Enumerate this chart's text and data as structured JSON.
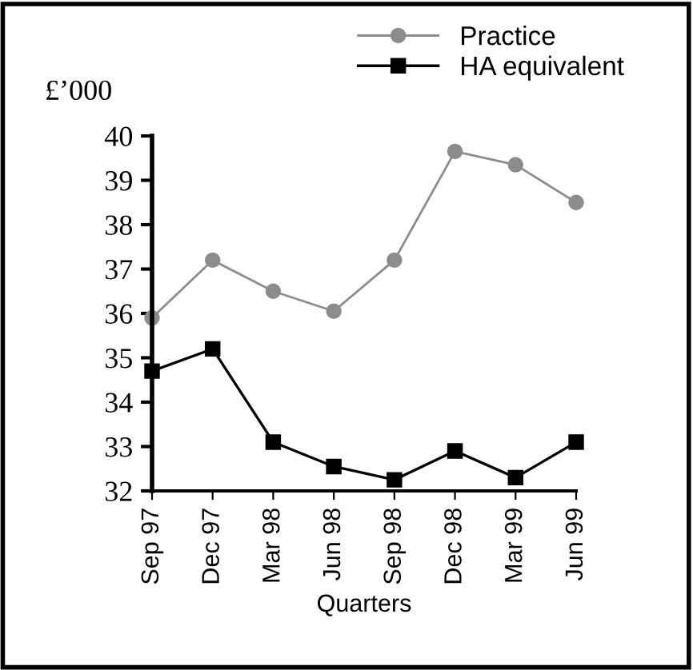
{
  "chart_data": {
    "type": "line",
    "ylabel": "£’000",
    "xlabel": "Quarters",
    "categories": [
      "Sep 97",
      "Dec 97",
      "Mar 98",
      "Jun 98",
      "Sep 98",
      "Dec 98",
      "Mar 99",
      "Jun 99"
    ],
    "series": [
      {
        "name": "Practice",
        "color": "#8c8c8c",
        "marker": "circle",
        "values": [
          35.9,
          37.2,
          36.5,
          36.05,
          37.2,
          39.65,
          39.35,
          38.5
        ]
      },
      {
        "name": "HA equivalent",
        "color": "#000000",
        "marker": "square",
        "values": [
          34.7,
          35.2,
          33.1,
          32.55,
          32.25,
          32.9,
          32.3,
          33.1
        ]
      }
    ],
    "ylim": [
      32,
      40
    ],
    "yticks": [
      32,
      33,
      34,
      35,
      36,
      37,
      38,
      39,
      40
    ],
    "grid": false,
    "legend": "top right"
  }
}
